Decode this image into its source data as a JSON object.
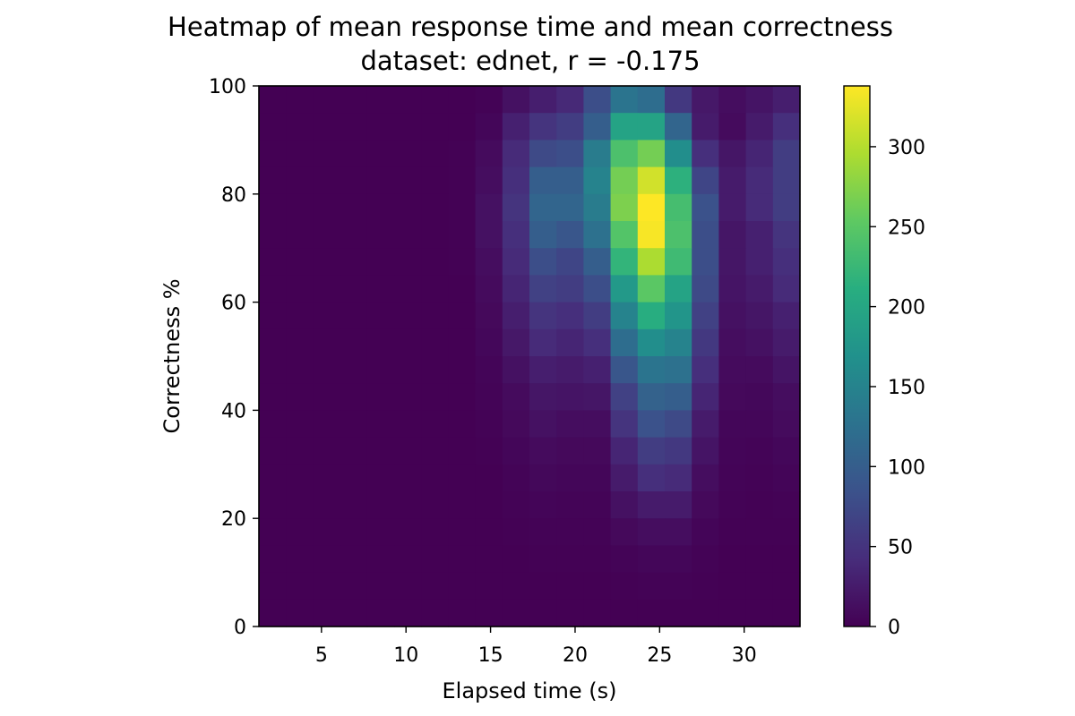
{
  "chart_data": {
    "type": "heatmap",
    "title": "Heatmap of mean response time and mean correctness",
    "subtitle": "dataset: ednet, r = -0.175",
    "xlabel": "Elapsed time (s)",
    "ylabel": "Correctness %",
    "xlim": [
      1.3,
      33.3
    ],
    "ylim": [
      0,
      100
    ],
    "xticks": [
      5,
      10,
      15,
      20,
      25,
      30
    ],
    "yticks": [
      0,
      20,
      40,
      60,
      80,
      100
    ],
    "colorbar": {
      "min": 0,
      "max": 338,
      "ticks": [
        0,
        50,
        100,
        150,
        200,
        250,
        300
      ],
      "colormap": "viridis"
    },
    "grid": false,
    "x_bin_edges": [
      1.3,
      2.9,
      4.5,
      6.1,
      7.7,
      9.3,
      10.9,
      12.5,
      14.1,
      15.7,
      17.3,
      18.9,
      20.5,
      22.1,
      23.7,
      25.3,
      26.9,
      28.5,
      30.1,
      31.7,
      33.3
    ],
    "y_bin_edges": [
      0,
      5,
      10,
      15,
      20,
      25,
      30,
      35,
      40,
      45,
      50,
      55,
      60,
      65,
      70,
      75,
      80,
      85,
      90,
      95,
      100
    ],
    "values_top_to_bottom": [
      [
        0,
        0,
        0,
        0,
        0,
        0,
        0,
        0,
        2,
        15,
        28,
        38,
        80,
        130,
        120,
        55,
        22,
        12,
        18,
        28
      ],
      [
        0,
        0,
        0,
        0,
        0,
        0,
        0,
        0,
        5,
        30,
        50,
        60,
        100,
        195,
        195,
        110,
        25,
        10,
        25,
        45
      ],
      [
        0,
        0,
        0,
        0,
        0,
        0,
        0,
        1,
        10,
        40,
        75,
        80,
        140,
        240,
        265,
        165,
        45,
        20,
        35,
        60
      ],
      [
        0,
        0,
        0,
        0,
        0,
        0,
        0,
        1,
        12,
        45,
        100,
        100,
        150,
        265,
        315,
        215,
        70,
        25,
        40,
        60
      ],
      [
        0,
        0,
        0,
        0,
        0,
        0,
        0,
        1,
        15,
        50,
        110,
        110,
        140,
        270,
        338,
        235,
        85,
        25,
        40,
        60
      ],
      [
        0,
        0,
        0,
        0,
        0,
        0,
        0,
        1,
        15,
        45,
        100,
        90,
        125,
        245,
        335,
        240,
        80,
        20,
        30,
        50
      ],
      [
        0,
        0,
        0,
        0,
        0,
        0,
        0,
        1,
        12,
        40,
        80,
        70,
        100,
        220,
        295,
        230,
        80,
        20,
        30,
        45
      ],
      [
        0,
        0,
        0,
        0,
        0,
        0,
        0,
        0,
        10,
        35,
        65,
        60,
        80,
        180,
        250,
        195,
        75,
        18,
        25,
        40
      ],
      [
        0,
        0,
        0,
        0,
        0,
        0,
        0,
        0,
        8,
        28,
        50,
        45,
        60,
        150,
        210,
        175,
        65,
        15,
        20,
        30
      ],
      [
        0,
        0,
        0,
        0,
        0,
        0,
        0,
        0,
        6,
        22,
        40,
        35,
        45,
        120,
        165,
        150,
        55,
        12,
        15,
        25
      ],
      [
        0,
        0,
        0,
        0,
        0,
        0,
        0,
        0,
        4,
        15,
        28,
        25,
        30,
        90,
        130,
        125,
        45,
        10,
        10,
        18
      ],
      [
        0,
        0,
        0,
        0,
        0,
        0,
        0,
        0,
        3,
        10,
        20,
        18,
        20,
        65,
        105,
        100,
        35,
        8,
        7,
        12
      ],
      [
        0,
        0,
        0,
        0,
        0,
        0,
        0,
        0,
        2,
        8,
        15,
        12,
        12,
        50,
        85,
        75,
        25,
        5,
        5,
        10
      ],
      [
        0,
        0,
        0,
        0,
        0,
        0,
        0,
        0,
        1,
        5,
        10,
        8,
        8,
        35,
        60,
        55,
        18,
        4,
        3,
        6
      ],
      [
        0,
        0,
        0,
        0,
        0,
        0,
        0,
        0,
        0,
        3,
        7,
        5,
        5,
        25,
        45,
        40,
        12,
        3,
        2,
        4
      ],
      [
        0,
        0,
        0,
        0,
        0,
        0,
        0,
        0,
        0,
        2,
        4,
        3,
        3,
        15,
        25,
        25,
        8,
        2,
        1,
        2
      ],
      [
        0,
        0,
        0,
        0,
        0,
        0,
        0,
        0,
        0,
        1,
        2,
        2,
        2,
        8,
        12,
        12,
        4,
        1,
        1,
        1
      ],
      [
        0,
        0,
        0,
        0,
        0,
        0,
        0,
        0,
        0,
        0,
        1,
        1,
        1,
        3,
        5,
        5,
        2,
        0,
        0,
        0
      ],
      [
        0,
        0,
        0,
        0,
        0,
        0,
        0,
        0,
        0,
        0,
        0,
        0,
        0,
        1,
        2,
        2,
        1,
        0,
        0,
        0
      ],
      [
        0,
        0,
        0,
        0,
        0,
        0,
        0,
        0,
        0,
        0,
        0,
        0,
        0,
        0,
        0,
        0,
        0,
        0,
        0,
        0
      ]
    ]
  }
}
